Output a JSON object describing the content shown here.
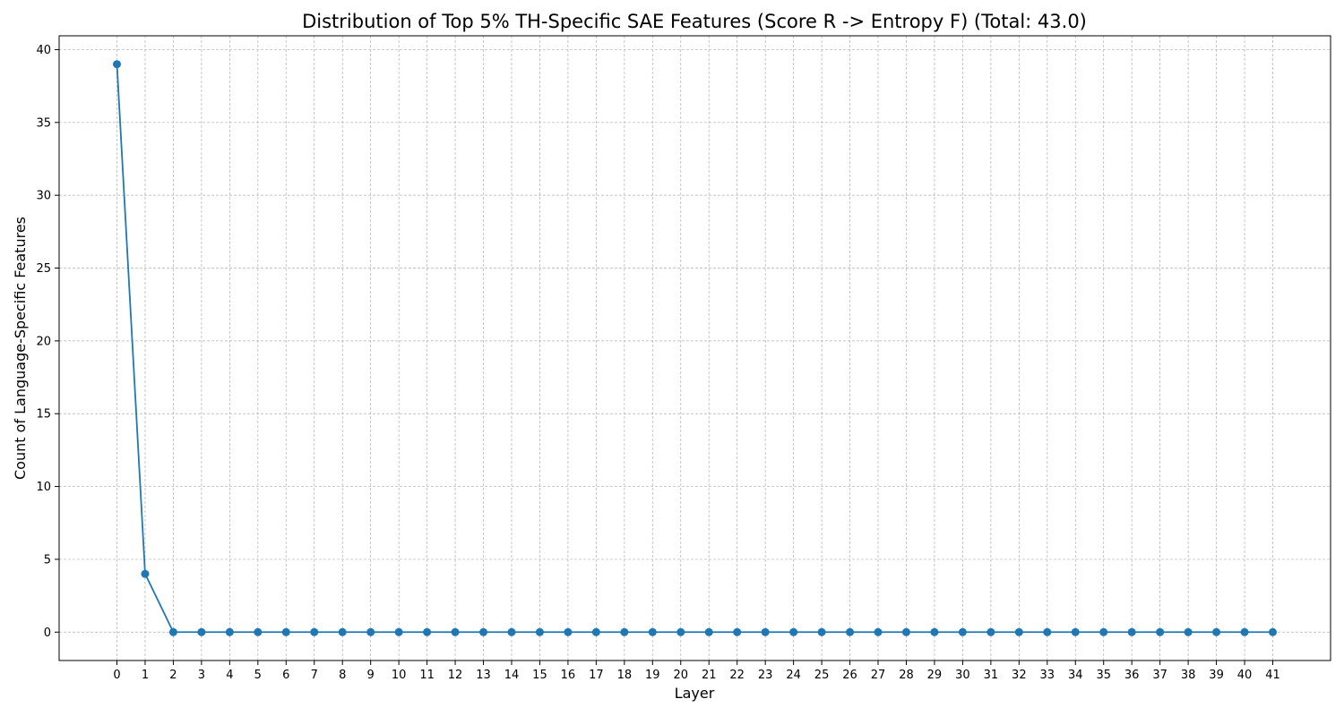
{
  "chart_data": {
    "type": "line",
    "title": "Distribution of Top 5% TH-Specific SAE Features (Score R -> Entropy F) (Total: 43.0)",
    "xlabel": "Layer",
    "ylabel": "Count of Language-Specific Features",
    "x": [
      0,
      1,
      2,
      3,
      4,
      5,
      6,
      7,
      8,
      9,
      10,
      11,
      12,
      13,
      14,
      15,
      16,
      17,
      18,
      19,
      20,
      21,
      22,
      23,
      24,
      25,
      26,
      27,
      28,
      29,
      30,
      31,
      32,
      33,
      34,
      35,
      36,
      37,
      38,
      39,
      40,
      41
    ],
    "x_tick_labels": [
      "0",
      "1",
      "2",
      "3",
      "4",
      "5",
      "6",
      "7",
      "8",
      "9",
      "10",
      "11",
      "12",
      "13",
      "14",
      "15",
      "16",
      "17",
      "18",
      "19",
      "20",
      "21",
      "22",
      "23",
      "24",
      "25",
      "26",
      "27",
      "28",
      "29",
      "30",
      "31",
      "32",
      "33",
      "34",
      "35",
      "36",
      "37",
      "38",
      "39",
      "40",
      "41"
    ],
    "y_ticks": [
      0,
      5,
      10,
      15,
      20,
      25,
      30,
      35,
      40
    ],
    "y_tick_labels": [
      "0",
      "5",
      "10",
      "15",
      "20",
      "25",
      "30",
      "35",
      "40"
    ],
    "xlim": [
      -2.05,
      43.05
    ],
    "ylim": [
      -1.95,
      40.95
    ],
    "grid": true,
    "series": [
      {
        "values": [
          39,
          4,
          0,
          0,
          0,
          0,
          0,
          0,
          0,
          0,
          0,
          0,
          0,
          0,
          0,
          0,
          0,
          0,
          0,
          0,
          0,
          0,
          0,
          0,
          0,
          0,
          0,
          0,
          0,
          0,
          0,
          0,
          0,
          0,
          0,
          0,
          0,
          0,
          0,
          0,
          0,
          0
        ],
        "color": "#1f77b4",
        "marker": "circle"
      }
    ]
  }
}
